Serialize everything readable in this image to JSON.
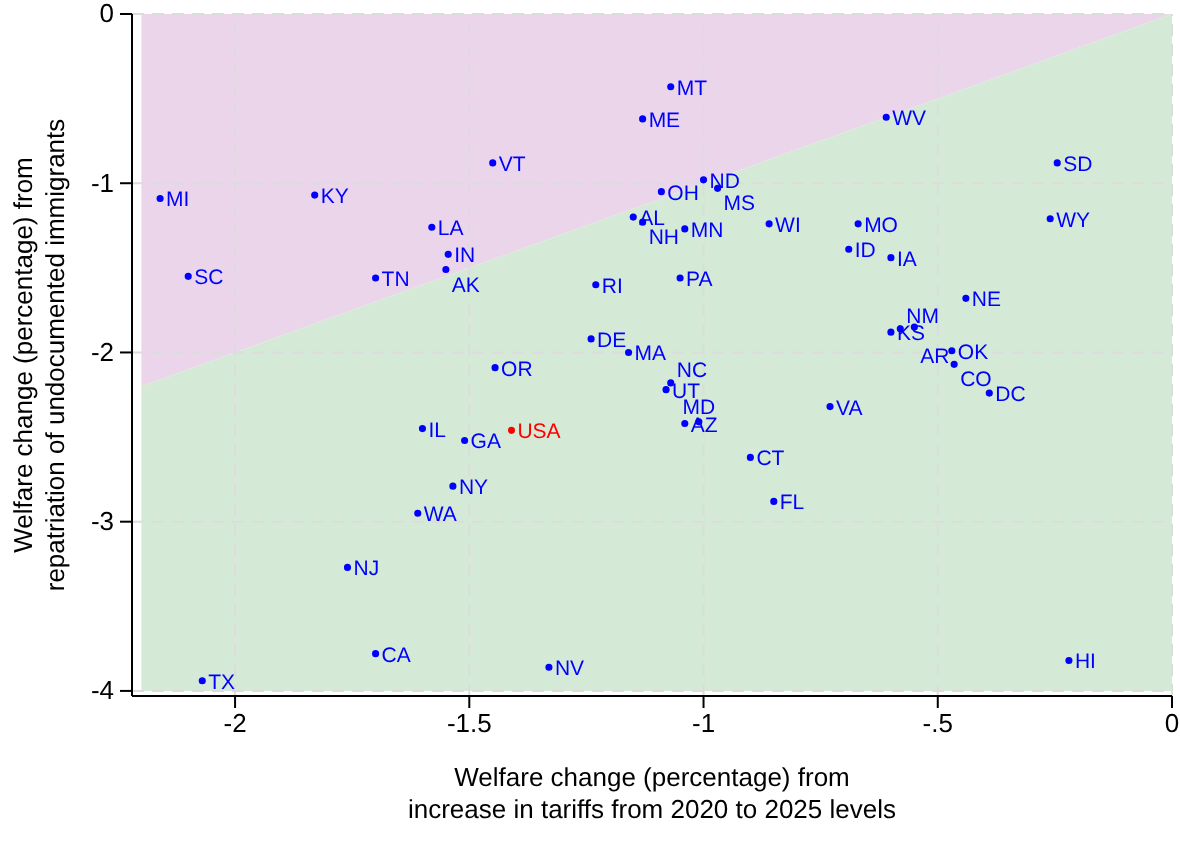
{
  "chart_data": {
    "type": "scatter",
    "xlabel": "Welfare change (percentage) from\nincrease in tariffs from 2020 to 2025 levels",
    "ylabel": "Welfare change (percentage) from\nrepatriation of undocumented immigrants",
    "xlim": [
      -2.22,
      0
    ],
    "ylim": [
      -4.03,
      0
    ],
    "xticks": [
      -2,
      -1.5,
      -1,
      {
        "value": -0.5,
        "label": "-.5"
      },
      0
    ],
    "yticks": [
      -4,
      -3,
      -2,
      -1,
      0
    ],
    "grid": true,
    "marker": "circle",
    "stacked": true,
    "series": [
      {
        "type": "area",
        "marker": "none",
        "color": "#ebd5eb",
        "x": [
          -2.2,
          0
        ],
        "values": [
          -2.2,
          0
        ]
      },
      {
        "type": "area",
        "marker": "none",
        "color": "#d5ead6",
        "x": [
          -2.2,
          0
        ],
        "values": [
          -1.8,
          -4
        ]
      },
      {
        "color": "#0000ff",
        "x": [
          -2.16,
          -1.83,
          -2.1,
          -1.58,
          -1.545,
          -1.55,
          -1.7,
          -1.45,
          -1.23,
          -1.24,
          -1.16,
          -1.445,
          -1.15,
          -1.13,
          -1.07,
          -1.13,
          -0.61,
          -0.245,
          -1.0,
          -0.97,
          -1.09,
          -1.04,
          -0.86,
          -0.67,
          -0.26,
          -0.69,
          -0.6,
          -1.05,
          -0.44,
          -0.6,
          -0.58,
          -0.55,
          -0.47,
          -0.465,
          -0.39,
          -1.08,
          -1.07,
          -1.04,
          -1.01,
          -0.73,
          -0.9,
          -0.85,
          -0.22,
          -1.6,
          -1.51,
          -1.535,
          -1.61,
          -1.76,
          -1.7,
          -2.07,
          -1.33
        ],
        "values": [
          -1.09,
          -1.07,
          -1.55,
          -1.26,
          -1.42,
          -1.51,
          -1.56,
          -0.88,
          -1.6,
          -1.92,
          -2.0,
          -2.09,
          -1.2,
          -1.23,
          -0.43,
          -0.62,
          -0.61,
          -0.88,
          -0.98,
          -1.03,
          -1.05,
          -1.27,
          -1.24,
          -1.24,
          -1.21,
          -1.39,
          -1.44,
          -1.56,
          -1.68,
          -1.88,
          -1.86,
          -1.85,
          -1.99,
          -2.07,
          -2.24,
          -2.22,
          -2.18,
          -2.42,
          -2.41,
          -2.32,
          -2.62,
          -2.88,
          -3.82,
          -2.45,
          -2.52,
          -2.79,
          -2.95,
          -3.27,
          -3.78,
          -3.94,
          -3.86
        ]
      },
      {
        "name": "USA",
        "color": "#ff0000",
        "x": [
          -1.41
        ],
        "values": [
          -2.46
        ]
      }
    ],
    "annotations": [
      {
        "text": "MI",
        "x": -2.16,
        "y": -1.09
      },
      {
        "text": "KY",
        "x": -1.83,
        "y": -1.07
      },
      {
        "text": "SC",
        "x": -2.1,
        "y": -1.55
      },
      {
        "text": "LA",
        "x": -1.58,
        "y": -1.26
      },
      {
        "text": "IN",
        "x": -1.545,
        "y": -1.42
      },
      {
        "text": "AK",
        "x": -1.55,
        "y": -1.51
      },
      {
        "text": "TN",
        "x": -1.7,
        "y": -1.56
      },
      {
        "text": "VT",
        "x": -1.45,
        "y": -0.88
      },
      {
        "text": "RI",
        "x": -1.23,
        "y": -1.6
      },
      {
        "text": "DE",
        "x": -1.24,
        "y": -1.92
      },
      {
        "text": "MA",
        "x": -1.16,
        "y": -2.0
      },
      {
        "text": "OR",
        "x": -1.445,
        "y": -2.09
      },
      {
        "text": "AL",
        "x": -1.15,
        "y": -1.2
      },
      {
        "text": "NH",
        "x": -1.13,
        "y": -1.23
      },
      {
        "text": "MT",
        "x": -1.07,
        "y": -0.43
      },
      {
        "text": "ME",
        "x": -1.13,
        "y": -0.62
      },
      {
        "text": "WV",
        "x": -0.61,
        "y": -0.61
      },
      {
        "text": "SD",
        "x": -0.245,
        "y": -0.88
      },
      {
        "text": "ND",
        "x": -1.0,
        "y": -0.98
      },
      {
        "text": "MS",
        "x": -0.97,
        "y": -1.03
      },
      {
        "text": "OH",
        "x": -1.09,
        "y": -1.05
      },
      {
        "text": "MN",
        "x": -1.04,
        "y": -1.27
      },
      {
        "text": "WI",
        "x": -0.86,
        "y": -1.24
      },
      {
        "text": "MO",
        "x": -0.67,
        "y": -1.24
      },
      {
        "text": "WY",
        "x": -0.26,
        "y": -1.21
      },
      {
        "text": "ID",
        "x": -0.69,
        "y": -1.39
      },
      {
        "text": "IA",
        "x": -0.6,
        "y": -1.44
      },
      {
        "text": "PA",
        "x": -1.05,
        "y": -1.56
      },
      {
        "text": "NE",
        "x": -0.44,
        "y": -1.68
      },
      {
        "text": "KS",
        "x": -0.6,
        "y": -1.88
      },
      {
        "text": "NM",
        "x": -0.58,
        "y": -1.86
      },
      {
        "text": "AR",
        "x": -0.55,
        "y": -1.85
      },
      {
        "text": "OK",
        "x": -0.47,
        "y": -1.99
      },
      {
        "text": "CO",
        "x": -0.465,
        "y": -2.07
      },
      {
        "text": "DC",
        "x": -0.39,
        "y": -2.24
      },
      {
        "text": "UT",
        "x": -1.08,
        "y": -2.22
      },
      {
        "text": "NC",
        "x": -1.07,
        "y": -2.18
      },
      {
        "text": "AZ",
        "x": -1.04,
        "y": -2.42
      },
      {
        "text": "MD",
        "x": -1.01,
        "y": -2.41
      },
      {
        "text": "VA",
        "x": -0.73,
        "y": -2.32
      },
      {
        "text": "CT",
        "x": -0.9,
        "y": -2.62
      },
      {
        "text": "FL",
        "x": -0.85,
        "y": -2.88
      },
      {
        "text": "HI",
        "x": -0.22,
        "y": -3.82
      },
      {
        "text": "IL",
        "x": -1.6,
        "y": -2.45
      },
      {
        "text": "GA",
        "x": -1.51,
        "y": -2.52
      },
      {
        "text": "NY",
        "x": -1.535,
        "y": -2.79
      },
      {
        "text": "WA",
        "x": -1.61,
        "y": -2.95
      },
      {
        "text": "NJ",
        "x": -1.76,
        "y": -3.27
      },
      {
        "text": "CA",
        "x": -1.7,
        "y": -3.78
      },
      {
        "text": "TX",
        "x": -2.07,
        "y": -3.94
      },
      {
        "text": "NV",
        "x": -1.33,
        "y": -3.86
      }
    ]
  }
}
